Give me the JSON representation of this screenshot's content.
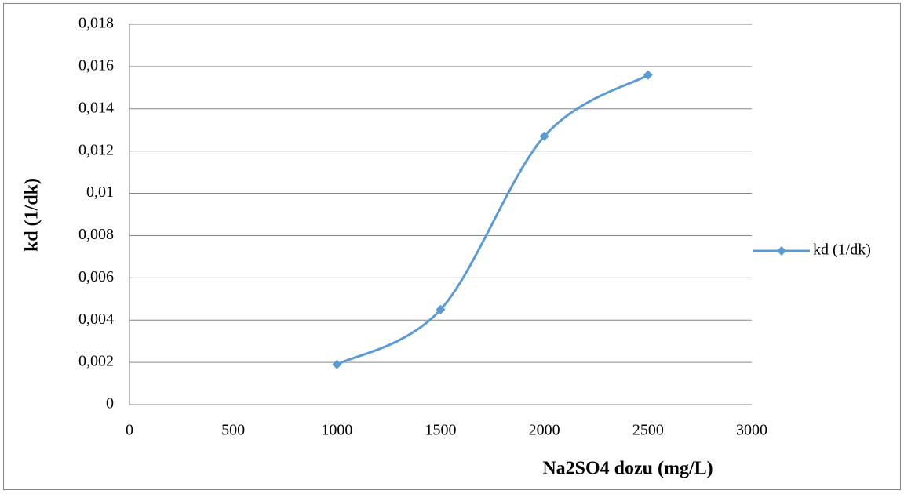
{
  "chart_data": {
    "type": "scatter-smooth",
    "x_label": "Na2SO4 dozu (mg/L)",
    "y_label": "kd (1/dk)",
    "x": [
      1000,
      1500,
      2000,
      2500
    ],
    "series": [
      {
        "name": "kd (1/dk)",
        "color": "#5b9bd5",
        "values": [
          0.0019,
          0.0045,
          0.0127,
          0.0156
        ]
      }
    ],
    "xlim": [
      0,
      3000
    ],
    "xticks": [
      0,
      500,
      1000,
      1500,
      2000,
      2500,
      3000
    ],
    "ylim": [
      0,
      0.018
    ],
    "yticks": [
      0,
      {
        "value": 0.002,
        "label": "0,002"
      },
      {
        "value": 0.004,
        "label": "0,004"
      },
      {
        "value": 0.006,
        "label": "0,006"
      },
      {
        "value": 0.008,
        "label": "0,008"
      },
      {
        "value": 0.01,
        "label": "0,01"
      },
      {
        "value": 0.012,
        "label": "0,012"
      },
      {
        "value": 0.014,
        "label": "0,014"
      },
      {
        "value": 0.016,
        "label": "0,016"
      },
      {
        "value": 0.018,
        "label": "0,018"
      }
    ],
    "grid": true,
    "legend": "right"
  }
}
